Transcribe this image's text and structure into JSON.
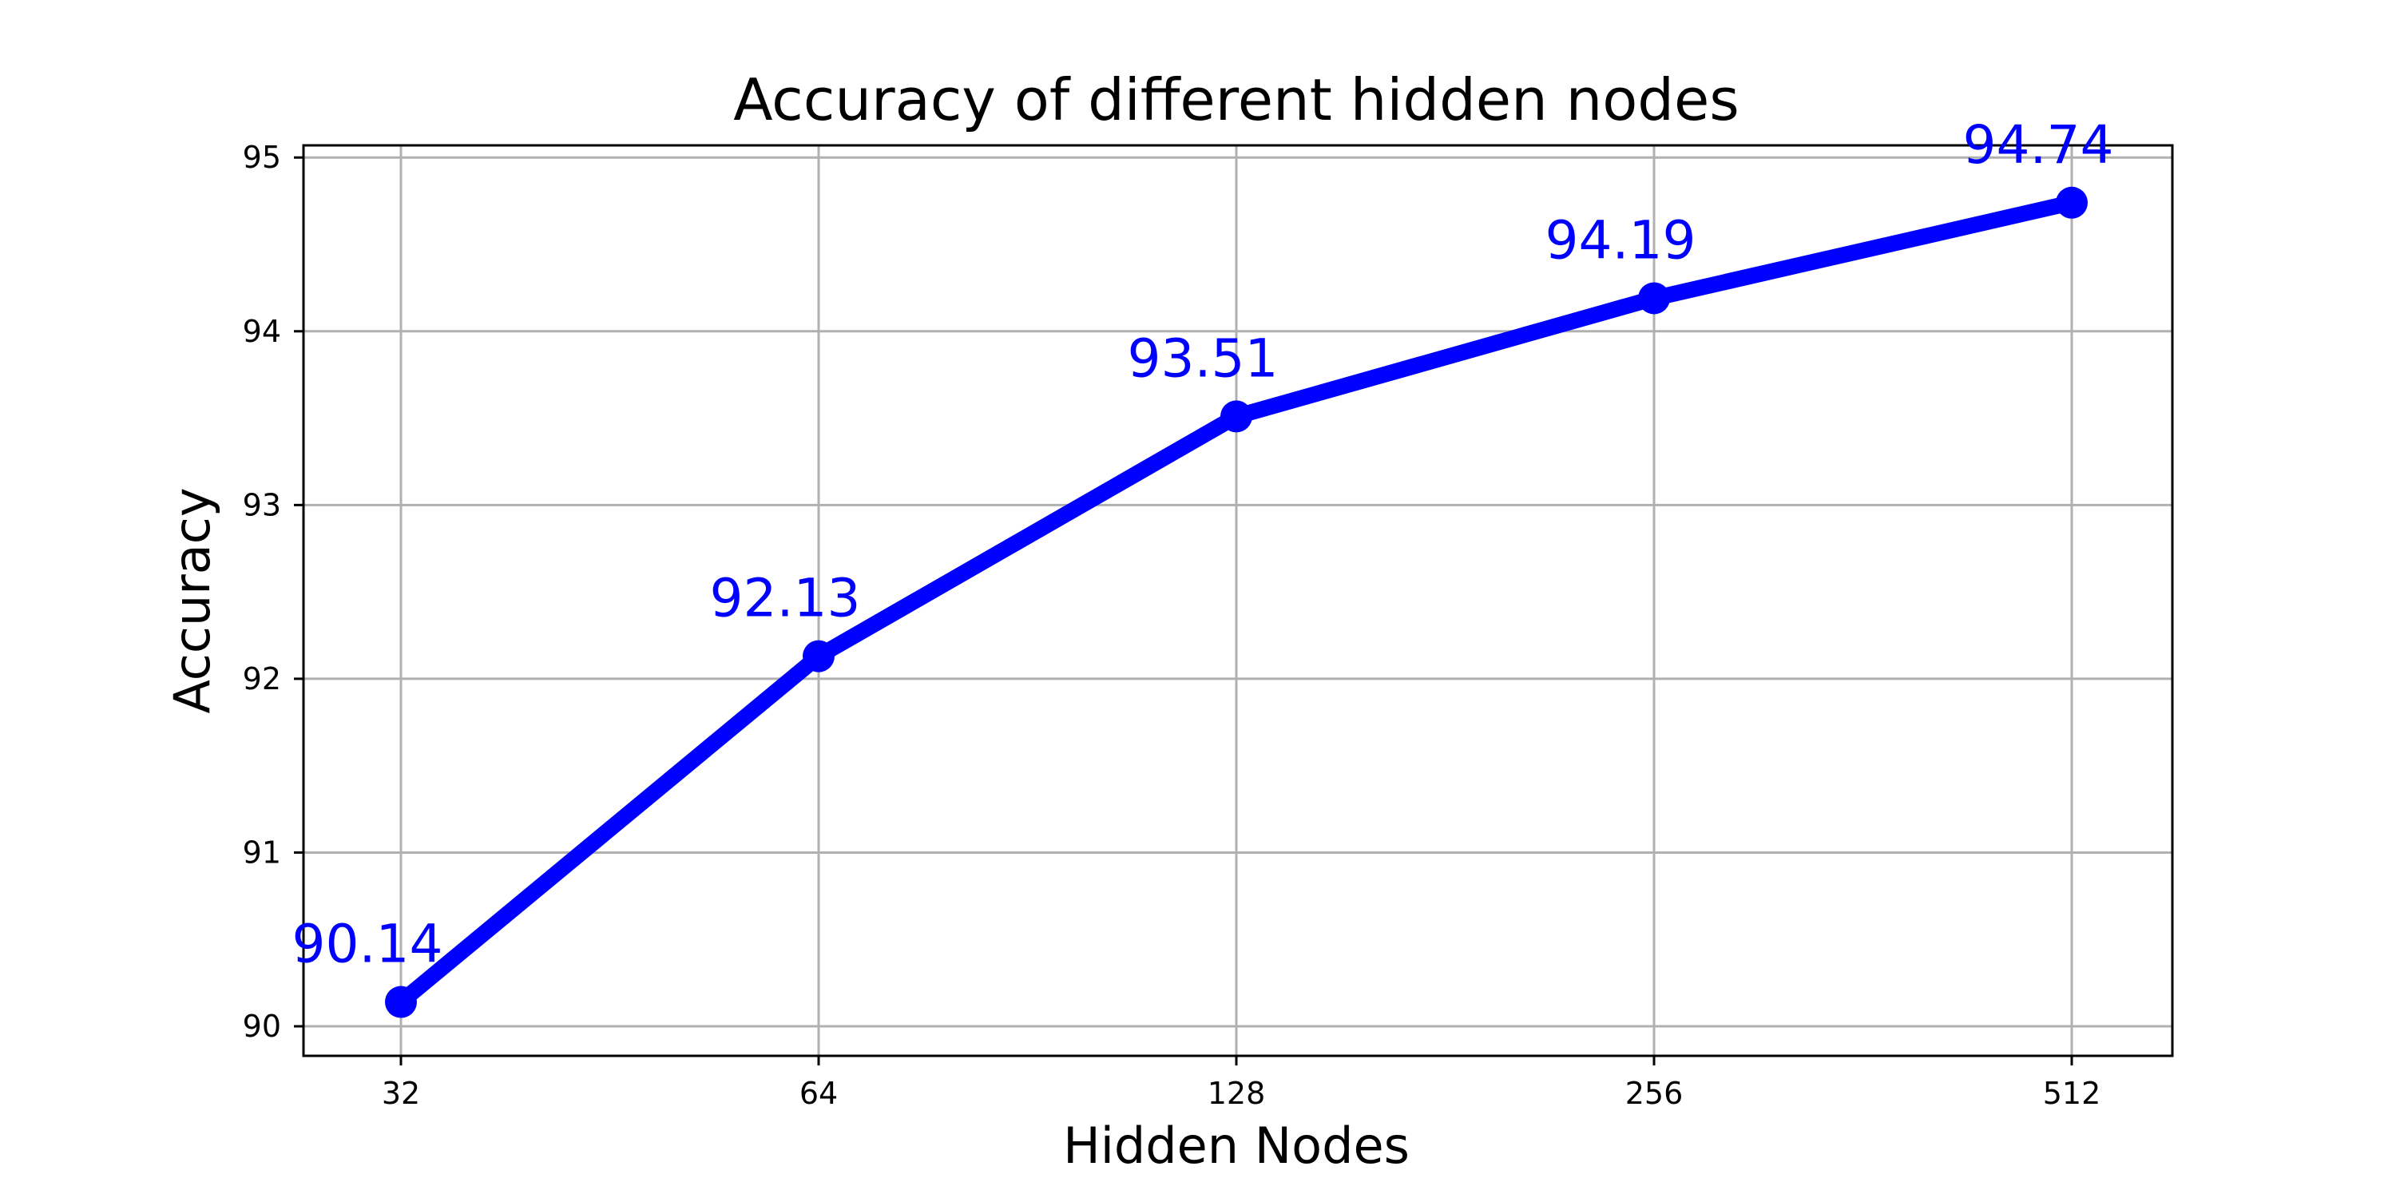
{
  "chart_data": {
    "type": "line",
    "title": "Accuracy of different hidden nodes",
    "xlabel": "Hidden Nodes",
    "ylabel": "Accuracy",
    "x_scale": "log2",
    "categories": [
      "32",
      "64",
      "128",
      "256",
      "512"
    ],
    "x": [
      32,
      64,
      128,
      256,
      512
    ],
    "xticks": [
      "32",
      "64",
      "128",
      "256",
      "512"
    ],
    "yticks": [
      "90",
      "91",
      "92",
      "93",
      "94",
      "95"
    ],
    "ylim": [
      89.83,
      95.07
    ],
    "grid": true,
    "series": [
      {
        "values": [
          90.14,
          92.13,
          93.51,
          94.19,
          94.74
        ],
        "color": "#0000ff",
        "marker": "circle",
        "data_labels": [
          "90.14",
          "92.13",
          "93.51",
          "94.19",
          "94.74"
        ]
      }
    ]
  }
}
